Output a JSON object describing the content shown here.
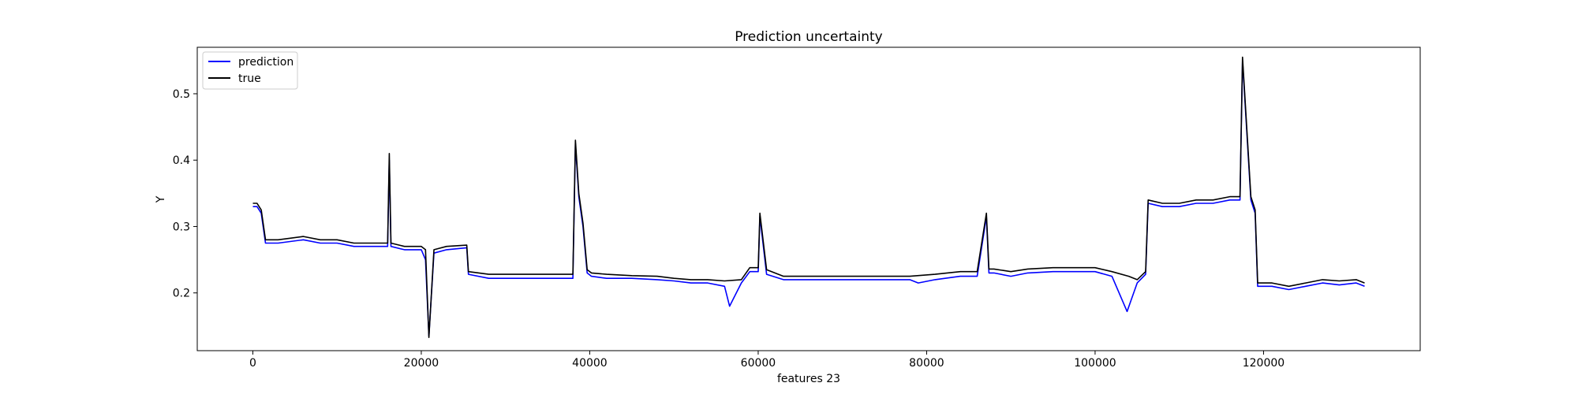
{
  "chart_data": {
    "type": "line",
    "title": "Prediction uncertainty",
    "xlabel": "features 23",
    "ylabel": "Y",
    "xlim": [
      -6600,
      138600
    ],
    "ylim": [
      0.113,
      0.57
    ],
    "xticks": [
      0,
      20000,
      40000,
      60000,
      80000,
      100000,
      120000
    ],
    "xtick_labels": [
      "0",
      "20000",
      "40000",
      "60000",
      "80000",
      "100000",
      "120000"
    ],
    "yticks": [
      0.2,
      0.3,
      0.4,
      0.5
    ],
    "ytick_labels": [
      "0.2",
      "0.3",
      "0.4",
      "0.5"
    ],
    "grid": false,
    "legend": {
      "placement": "top-left",
      "entries": [
        "prediction",
        "true"
      ]
    },
    "series": [
      {
        "name": "prediction",
        "color": "#0000ff",
        "x": [
          0,
          500,
          1000,
          1500,
          3000,
          6000,
          8000,
          10000,
          12000,
          14000,
          16000,
          16200,
          16400,
          18000,
          20000,
          20500,
          20900,
          21500,
          23000,
          25400,
          25600,
          28000,
          30000,
          33000,
          36000,
          38000,
          38300,
          38700,
          39200,
          39700,
          40200,
          42000,
          45000,
          48000,
          50000,
          52000,
          54000,
          56000,
          56600,
          58000,
          59000,
          60000,
          60200,
          61000,
          63000,
          66000,
          69000,
          72000,
          75000,
          78000,
          79000,
          81000,
          84000,
          86000,
          87100,
          87400,
          88000,
          90000,
          92000,
          95000,
          98000,
          100000,
          102000,
          103800,
          105000,
          106000,
          106300,
          108000,
          110000,
          112000,
          114000,
          116000,
          117200,
          117500,
          118500,
          119000,
          119300,
          121000,
          123000,
          125000,
          127000,
          129000,
          131000,
          132000
        ],
        "values": [
          0.33,
          0.33,
          0.32,
          0.275,
          0.275,
          0.28,
          0.275,
          0.275,
          0.27,
          0.27,
          0.27,
          0.4,
          0.27,
          0.265,
          0.265,
          0.25,
          0.135,
          0.26,
          0.265,
          0.268,
          0.228,
          0.222,
          0.222,
          0.222,
          0.222,
          0.222,
          0.425,
          0.345,
          0.3,
          0.23,
          0.225,
          0.222,
          0.222,
          0.22,
          0.218,
          0.215,
          0.215,
          0.21,
          0.18,
          0.215,
          0.232,
          0.232,
          0.315,
          0.228,
          0.22,
          0.22,
          0.22,
          0.22,
          0.22,
          0.22,
          0.215,
          0.22,
          0.225,
          0.225,
          0.315,
          0.23,
          0.23,
          0.225,
          0.23,
          0.232,
          0.232,
          0.232,
          0.225,
          0.172,
          0.215,
          0.228,
          0.335,
          0.33,
          0.33,
          0.335,
          0.335,
          0.34,
          0.34,
          0.55,
          0.34,
          0.32,
          0.21,
          0.21,
          0.205,
          0.21,
          0.215,
          0.212,
          0.215,
          0.21
        ]
      },
      {
        "name": "true",
        "color": "#000000",
        "x": [
          0,
          500,
          1000,
          1500,
          3000,
          6000,
          8000,
          10000,
          12000,
          14000,
          16000,
          16200,
          16400,
          18000,
          20000,
          20500,
          20900,
          21500,
          23000,
          25400,
          25600,
          28000,
          30000,
          33000,
          36000,
          38000,
          38300,
          38700,
          39200,
          39700,
          40200,
          42000,
          45000,
          48000,
          50000,
          52000,
          54000,
          56000,
          58000,
          59000,
          60000,
          60200,
          61000,
          63000,
          66000,
          69000,
          72000,
          75000,
          78000,
          81000,
          84000,
          86000,
          87100,
          87400,
          88000,
          90000,
          92000,
          95000,
          98000,
          100000,
          102000,
          104000,
          105000,
          106000,
          106300,
          108000,
          110000,
          112000,
          114000,
          116000,
          117200,
          117500,
          118500,
          119000,
          119300,
          121000,
          123000,
          125000,
          127000,
          129000,
          131000,
          132000
        ],
        "values": [
          0.335,
          0.335,
          0.325,
          0.28,
          0.28,
          0.285,
          0.28,
          0.28,
          0.275,
          0.275,
          0.275,
          0.41,
          0.275,
          0.27,
          0.27,
          0.265,
          0.133,
          0.265,
          0.27,
          0.272,
          0.232,
          0.228,
          0.228,
          0.228,
          0.228,
          0.228,
          0.43,
          0.35,
          0.305,
          0.235,
          0.23,
          0.228,
          0.226,
          0.225,
          0.222,
          0.22,
          0.22,
          0.218,
          0.22,
          0.238,
          0.238,
          0.32,
          0.235,
          0.225,
          0.225,
          0.225,
          0.225,
          0.225,
          0.225,
          0.228,
          0.232,
          0.232,
          0.32,
          0.236,
          0.236,
          0.232,
          0.236,
          0.238,
          0.238,
          0.238,
          0.232,
          0.225,
          0.22,
          0.232,
          0.34,
          0.335,
          0.335,
          0.34,
          0.34,
          0.345,
          0.345,
          0.555,
          0.345,
          0.325,
          0.215,
          0.215,
          0.21,
          0.215,
          0.22,
          0.218,
          0.22,
          0.215
        ]
      }
    ]
  }
}
